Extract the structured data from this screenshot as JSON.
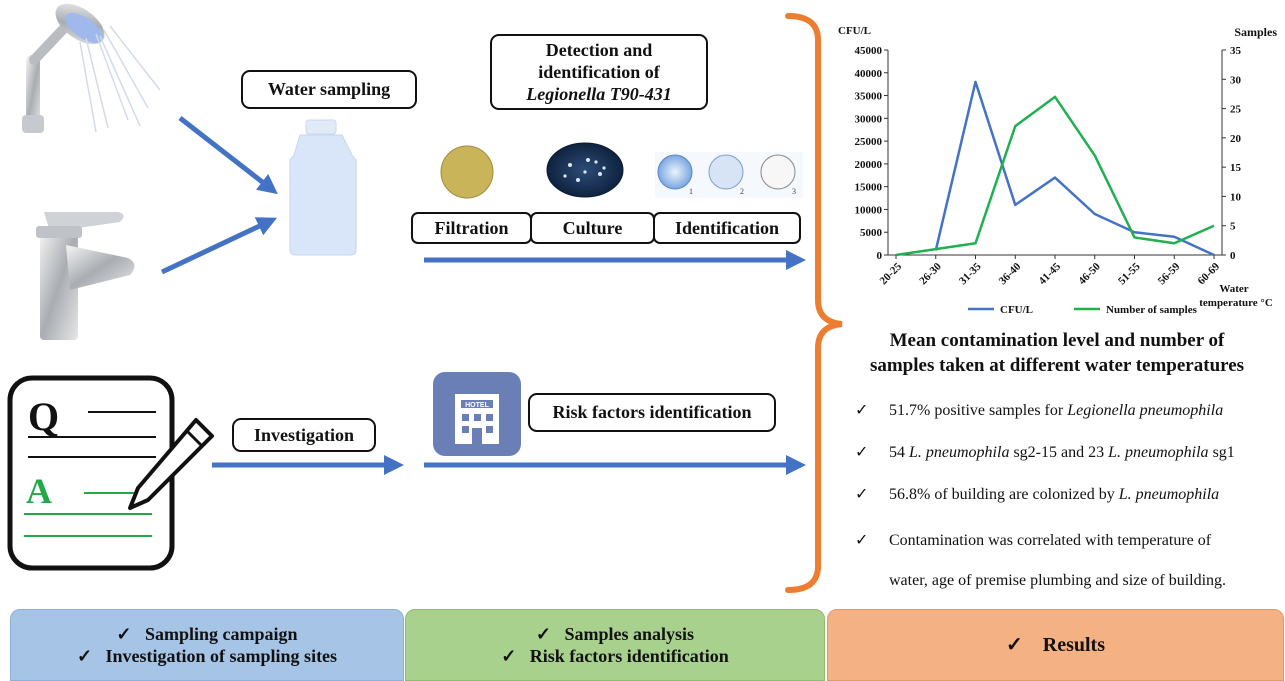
{
  "labels": {
    "water_sampling": "Water sampling",
    "detection_line1": "Detection and",
    "detection_line2": "identification of",
    "detection_line3": "Legionella T90-431",
    "filtration": "Filtration",
    "culture": "Culture",
    "identification": "Identification",
    "investigation": "Investigation",
    "risk_factors": "Risk factors identification",
    "q_letter": "Q",
    "a_letter": "A",
    "hotel": "HOTEL",
    "dish_1": "1",
    "dish_2": "2",
    "dish_3": "3"
  },
  "chart_data": {
    "type": "line",
    "categories": [
      "20-25",
      "26-30",
      "31-35",
      "36-40",
      "41-45",
      "46-50",
      "51-55",
      "56-59",
      "60-69"
    ],
    "series": [
      {
        "name": "CFU/L",
        "axis": "left",
        "color": "#4472c4",
        "values": [
          null,
          1000,
          38000,
          11000,
          17000,
          9000,
          5000,
          4000,
          0
        ]
      },
      {
        "name": "Number of samples",
        "axis": "right",
        "color": "#1fb04f",
        "values": [
          0,
          1,
          2,
          22,
          27,
          17,
          3,
          2,
          5
        ]
      }
    ],
    "ylabel_left": "CFU/L",
    "ylabel_right": "Samples",
    "xlabel_line1": "Water",
    "xlabel_line2": "temperature °C",
    "ylim_left": [
      0,
      45000
    ],
    "yticks_left": [
      "0",
      "5000",
      "10000",
      "15000",
      "20000",
      "25000",
      "30000",
      "35000",
      "40000",
      "45000"
    ],
    "ylim_right": [
      0,
      35
    ],
    "yticks_right": [
      "0",
      "5",
      "10",
      "15",
      "20",
      "25",
      "30",
      "35"
    ],
    "legend_placement": "bottom",
    "grid": false,
    "caption_line1": "Mean contamination level and number of",
    "caption_line2": "samples taken at different water temperatures"
  },
  "results": {
    "check": "✓",
    "r1_pre": "51.7% positive samples for ",
    "r1_it": "Legionella pneumophila",
    "r2_a": "54 ",
    "r2_it1": "L. pneumophila",
    "r2_b": " sg2-15 and 23 ",
    "r2_it2": "L. pneumophila",
    "r2_c": " sg1",
    "r3_pre": "56.8% of building are colonized by ",
    "r3_it": "L. pneumophila",
    "r4_line1": "Contamination was correlated with temperature of",
    "r4_line2": "water, age of premise plumbing and size of building."
  },
  "bands": {
    "check": "✓",
    "left_1": "Sampling campaign",
    "left_2": "Investigation of sampling sites",
    "middle_1": "Samples analysis",
    "middle_2": "Risk factors identification",
    "right_1": "Results"
  },
  "colors": {
    "arrow": "#4472c4",
    "brace": "#ed7d31",
    "band_left": "#a6c4e6",
    "band_middle": "#a9d18e",
    "band_right": "#f4b183",
    "answer_green": "#22a846",
    "hotel_icon": "#6a7fb6"
  }
}
